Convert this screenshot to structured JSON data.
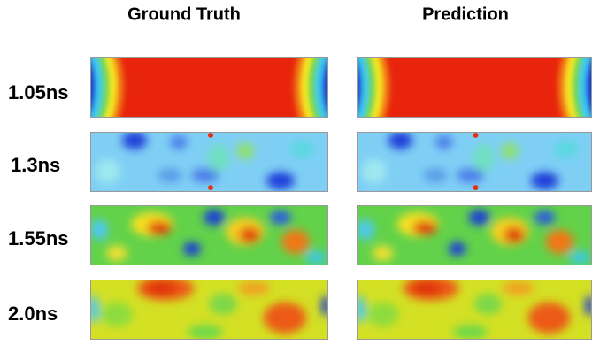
{
  "columns": [
    "Ground Truth",
    "Prediction"
  ],
  "rows": [
    "1.05ns",
    "1.3ns",
    "1.55ns",
    "2.0ns"
  ]
}
